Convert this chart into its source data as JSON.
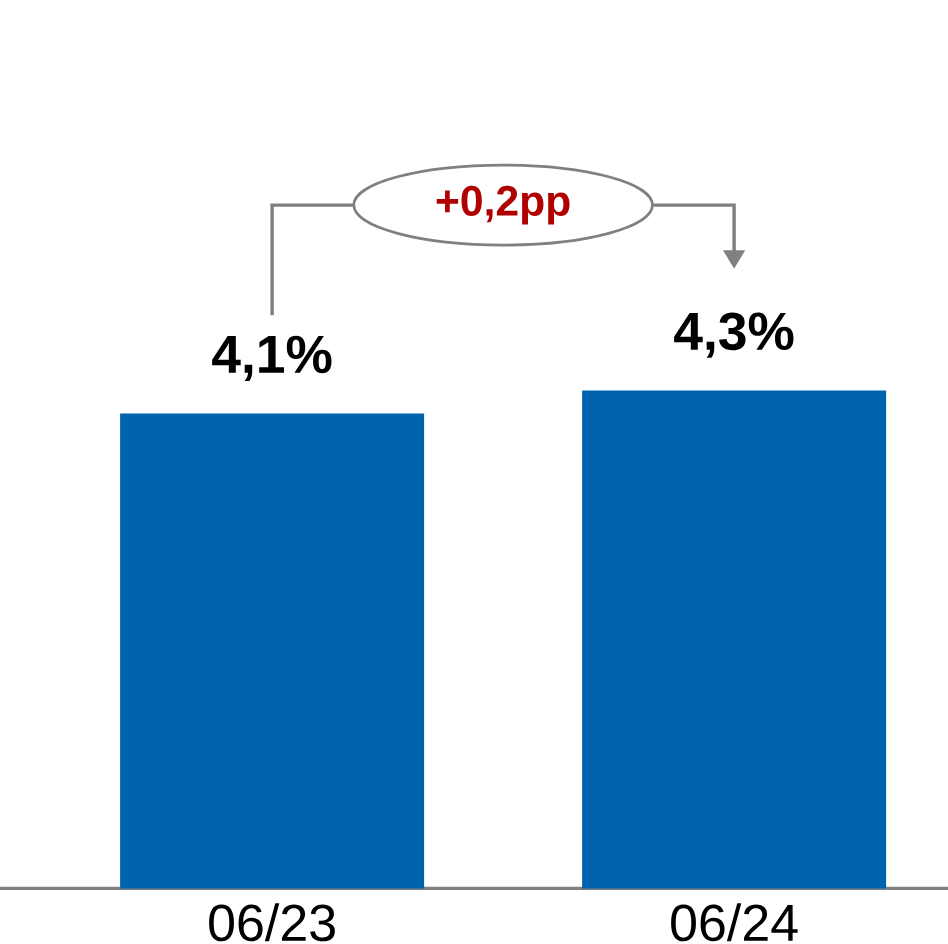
{
  "chart_data": {
    "type": "bar",
    "categories": [
      "06/23",
      "06/24"
    ],
    "values": [
      4.1,
      4.3
    ],
    "color": "#0063ad",
    "data_labels": true,
    "value_labels": [
      "4,1%",
      "4,3%"
    ],
    "annotations": [
      "+0,2pp"
    ]
  }
}
